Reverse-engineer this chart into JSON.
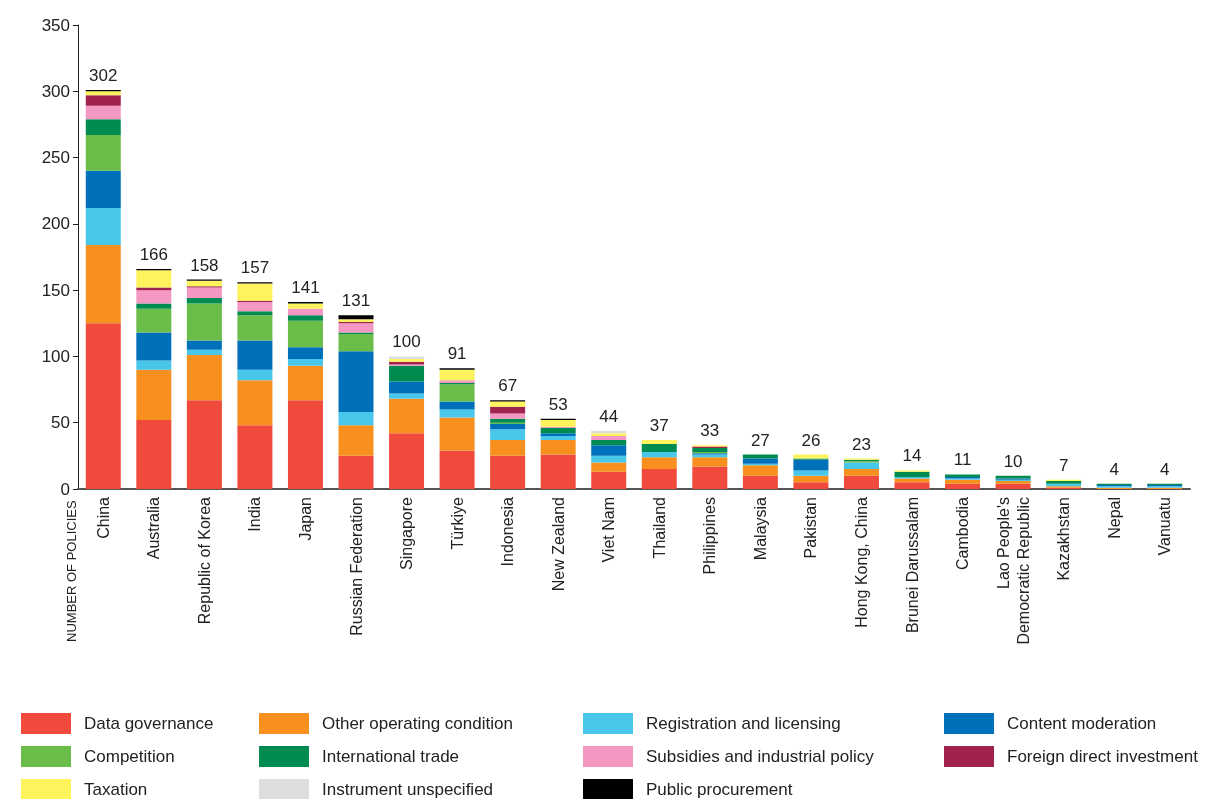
{
  "chart_data": {
    "type": "bar",
    "stacked": true,
    "ylabel": "NUMBER OF POLICIES",
    "categories": [
      "China",
      "Australia",
      "Republic of Korea",
      "India",
      "Japan",
      "Russian Federation",
      "Singapore",
      "Türkiye",
      "Indonesia",
      "New Zealand",
      "Viet Nam",
      "Thailand",
      "Philippines",
      "Malaysia",
      "Pakistan",
      "Hong Kong, China",
      "Brunei Darussalam",
      "Cambodia",
      "Lao People's\nDemocratic Republic",
      "Kazakhstan",
      "Nepal",
      "Vanuatu"
    ],
    "series": [
      {
        "name": "Data governance",
        "color": "#ef4a3b",
        "values": [
          125,
          52,
          67,
          48,
          67,
          25,
          42,
          29,
          25,
          26,
          13,
          15,
          17,
          10,
          5,
          10,
          5,
          4,
          4,
          1,
          0,
          0
        ]
      },
      {
        "name": "Other operating condition",
        "color": "#f7901e",
        "values": [
          59,
          38,
          34,
          34,
          26,
          23,
          26,
          25,
          12,
          11,
          7,
          9,
          7,
          8,
          5,
          5,
          3,
          3,
          2,
          1,
          1,
          1
        ]
      },
      {
        "name": "Registration and licensing",
        "color": "#48c7ea",
        "values": [
          28,
          7,
          4,
          8,
          5,
          10,
          4,
          6,
          8,
          3,
          5,
          4,
          2,
          1,
          4,
          5,
          1,
          1,
          1,
          2,
          1,
          1
        ]
      },
      {
        "name": "Content moderation",
        "color": "#0070bb",
        "values": [
          28,
          21,
          7,
          22,
          9,
          46,
          9,
          6,
          4,
          2,
          8,
          0,
          1,
          4,
          8,
          0,
          0,
          1,
          1,
          0,
          1,
          1
        ]
      },
      {
        "name": "Competition",
        "color": "#6abd49",
        "values": [
          27,
          18,
          28,
          19,
          20,
          13,
          0,
          13,
          1,
          0,
          0,
          0,
          1,
          0,
          0,
          1,
          0,
          0,
          0,
          0,
          0,
          0
        ]
      },
      {
        "name": "International trade",
        "color": "#008c51",
        "values": [
          12,
          4,
          4,
          3,
          4,
          1,
          12,
          1,
          3,
          4,
          4,
          6,
          3,
          3,
          1,
          1,
          4,
          2,
          2,
          2,
          1,
          1
        ]
      },
      {
        "name": "Subsidies and industrial policy",
        "color": "#f498c3",
        "values": [
          10,
          10,
          8,
          7,
          5,
          7,
          1,
          2,
          4,
          1,
          3,
          0,
          0,
          0,
          0,
          0,
          0,
          0,
          0,
          0,
          0,
          0
        ]
      },
      {
        "name": "Foreign direct investment",
        "color": "#a1224e",
        "values": [
          8,
          2,
          1,
          1,
          0,
          1,
          2,
          0,
          5,
          0,
          0,
          0,
          1,
          0,
          0,
          0,
          0,
          0,
          0,
          0,
          0,
          0
        ]
      },
      {
        "name": "Taxation",
        "color": "#fff35d",
        "values": [
          3,
          13,
          4,
          13,
          4,
          2,
          2,
          8,
          4,
          5,
          2,
          3,
          1,
          0,
          3,
          1,
          1,
          0,
          0,
          1,
          0,
          0
        ]
      },
      {
        "name": "Instrument unspecified",
        "color": "#dcdddf",
        "values": [
          null,
          0,
          0,
          null,
          0,
          0,
          2,
          0,
          0,
          0,
          2,
          0,
          0,
          null,
          0,
          0,
          0,
          0,
          0,
          0,
          0,
          0
        ]
      },
      {
        "name": "Public procurement",
        "color": "#000000",
        "values": [
          1,
          1,
          1,
          1,
          1,
          3,
          0,
          1,
          1,
          1,
          0,
          0,
          0,
          0,
          0,
          0,
          0,
          0,
          0,
          0,
          0,
          0
        ]
      }
    ],
    "totals": [
      "302",
      "166",
      "158",
      "157",
      "141",
      "131",
      "100",
      "91",
      "67",
      "53",
      "44",
      "37",
      "33",
      "27",
      "26",
      "23",
      "14",
      "11",
      "10",
      "7",
      "4",
      "4"
    ],
    "ylim": [
      0,
      350
    ],
    "yticks": [
      0,
      50,
      100,
      150,
      200,
      250,
      300,
      350
    ],
    "grid": false,
    "legend": "bottom"
  }
}
